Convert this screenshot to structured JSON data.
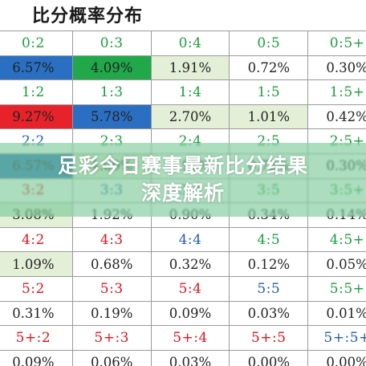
{
  "title": "比分概率分布",
  "banner": {
    "line1": "足彩今日赛事最新比分结果",
    "line2": "深度解析"
  },
  "rows": [
    {
      "kind": "score",
      "cells": [
        {
          "text": "0:2",
          "color": "green"
        },
        {
          "text": "0:3",
          "color": "green"
        },
        {
          "text": "0:4",
          "color": "green"
        },
        {
          "text": "0:5",
          "color": "green"
        },
        {
          "text": "0:5+",
          "color": "green"
        }
      ]
    },
    {
      "kind": "pct",
      "cells": [
        {
          "text": "6.57%",
          "bg": "blue"
        },
        {
          "text": "4.09%",
          "bg": "green"
        },
        {
          "text": "1.91%",
          "bg": "lightgreen"
        },
        {
          "text": "0.72%"
        },
        {
          "text": "0.30%"
        }
      ]
    },
    {
      "kind": "score",
      "cells": [
        {
          "text": "1:2",
          "color": "green"
        },
        {
          "text": "1:3",
          "color": "green"
        },
        {
          "text": "1:4",
          "color": "green"
        },
        {
          "text": "1:5",
          "color": "green"
        },
        {
          "text": "1:5+",
          "color": "green"
        }
      ]
    },
    {
      "kind": "pct",
      "cells": [
        {
          "text": "9.27%",
          "bg": "red"
        },
        {
          "text": "5.78%",
          "bg": "blue"
        },
        {
          "text": "2.70%",
          "bg": "lightgreen"
        },
        {
          "text": "1.01%",
          "bg": "lightgreen"
        },
        {
          "text": "0.42%"
        }
      ]
    },
    {
      "kind": "score",
      "cells": [
        {
          "text": "2:2",
          "color": "blue"
        },
        {
          "text": "2:3",
          "color": "green"
        },
        {
          "text": "2:4",
          "color": "green"
        },
        {
          "text": "2:5",
          "color": "green"
        },
        {
          "text": "2:5+",
          "color": "green"
        }
      ]
    },
    {
      "kind": "pct",
      "cells": [
        {
          "text": "6.57%",
          "bg": "blue"
        },
        {
          "text": "4.09%",
          "bg": "lightgreen"
        },
        {
          "text": "1.91%"
        },
        {
          "text": "0.72%"
        },
        {
          "text": "0.30%"
        }
      ]
    },
    {
      "kind": "score",
      "cells": [
        {
          "text": "3:2",
          "color": "red"
        },
        {
          "text": "3:3",
          "color": "blue"
        },
        {
          "text": "3:4",
          "color": "green"
        },
        {
          "text": "3:5",
          "color": "green"
        },
        {
          "text": "3:5+",
          "color": "green"
        }
      ]
    },
    {
      "kind": "pct",
      "cells": [
        {
          "text": "3.08%",
          "bg": "lightgreen"
        },
        {
          "text": "1.92%"
        },
        {
          "text": "0.90%"
        },
        {
          "text": "0.34%"
        },
        {
          "text": "0.14%"
        }
      ]
    },
    {
      "kind": "score",
      "cells": [
        {
          "text": "4:2",
          "color": "red"
        },
        {
          "text": "4:3",
          "color": "red"
        },
        {
          "text": "4:4",
          "color": "blue"
        },
        {
          "text": "4:5",
          "color": "green"
        },
        {
          "text": "4:5+",
          "color": "green"
        }
      ]
    },
    {
      "kind": "pct",
      "cells": [
        {
          "text": "1.09%",
          "bg": "lightgreen"
        },
        {
          "text": "0.68%"
        },
        {
          "text": "0.32%"
        },
        {
          "text": "0.12%"
        },
        {
          "text": "0.05%"
        }
      ]
    },
    {
      "kind": "score",
      "cells": [
        {
          "text": "5:2",
          "color": "red"
        },
        {
          "text": "5:3",
          "color": "red"
        },
        {
          "text": "5:4",
          "color": "red"
        },
        {
          "text": "5:5",
          "color": "blue"
        },
        {
          "text": "5:5+",
          "color": "green"
        }
      ]
    },
    {
      "kind": "pct",
      "cells": [
        {
          "text": "0.31%"
        },
        {
          "text": "0.19%"
        },
        {
          "text": "0.09%"
        },
        {
          "text": "0.03%"
        },
        {
          "text": "0.01%"
        }
      ]
    },
    {
      "kind": "score",
      "cells": [
        {
          "text": "5+:2",
          "color": "red"
        },
        {
          "text": "5+:3",
          "color": "red"
        },
        {
          "text": "5+:4",
          "color": "red"
        },
        {
          "text": "5+:5",
          "color": "red"
        },
        {
          "text": "5+:5+",
          "color": "blue"
        }
      ]
    },
    {
      "kind": "pct",
      "cells": [
        {
          "text": "0.09%"
        },
        {
          "text": "0.06%"
        },
        {
          "text": "0.03%"
        },
        {
          "text": "0.00%"
        },
        {
          "text": "0.00%"
        }
      ]
    }
  ]
}
